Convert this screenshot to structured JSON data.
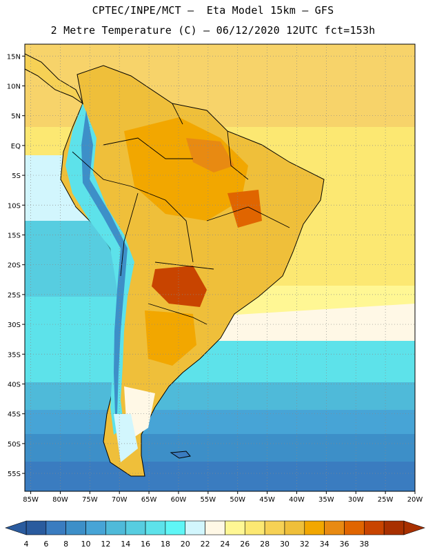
{
  "header": {
    "title_line1": "CPTEC/INPE/MCT –  Eta Model 15km – GFS",
    "title_line2": "2 Metre Temperature (C) – 06/12/2020 12UTC fct=153h"
  },
  "map": {
    "lat_ticks": [
      "15N",
      "10N",
      "5N",
      "EQ",
      "5S",
      "10S",
      "15S",
      "20S",
      "25S",
      "30S",
      "35S",
      "40S",
      "45S",
      "50S",
      "55S"
    ],
    "lat_values": [
      15,
      10,
      5,
      0,
      -5,
      -10,
      -15,
      -20,
      -25,
      -30,
      -35,
      -40,
      -45,
      -50,
      -55
    ],
    "lon_ticks": [
      "85W",
      "80W",
      "75W",
      "70W",
      "65W",
      "60W",
      "55W",
      "50W",
      "45W",
      "40W",
      "35W",
      "30W",
      "25W",
      "20W"
    ],
    "lon_values": [
      -85,
      -80,
      -75,
      -70,
      -65,
      -60,
      -55,
      -50,
      -45,
      -40,
      -35,
      -30,
      -25,
      -20
    ],
    "lat_range": [
      -58,
      17
    ],
    "lon_range": [
      -86,
      -20
    ]
  },
  "colorbar": {
    "labels": [
      "4",
      "6",
      "8",
      "10",
      "12",
      "14",
      "16",
      "18",
      "20",
      "22",
      "24",
      "26",
      "28",
      "30",
      "32",
      "34",
      "36",
      "38"
    ],
    "colors": [
      "#2a5b9e",
      "#3a7cc0",
      "#3d8fc8",
      "#47a4d6",
      "#4fbad9",
      "#57cde0",
      "#5de2ea",
      "#5ff6f6",
      "#d2f6fd",
      "#fff8e6",
      "#fff794",
      "#fce872",
      "#f6d155",
      "#efbf3a",
      "#f2a700",
      "#e88a12",
      "#e06500",
      "#c84400",
      "#a83000"
    ],
    "range_min": 4,
    "range_max": 38
  }
}
